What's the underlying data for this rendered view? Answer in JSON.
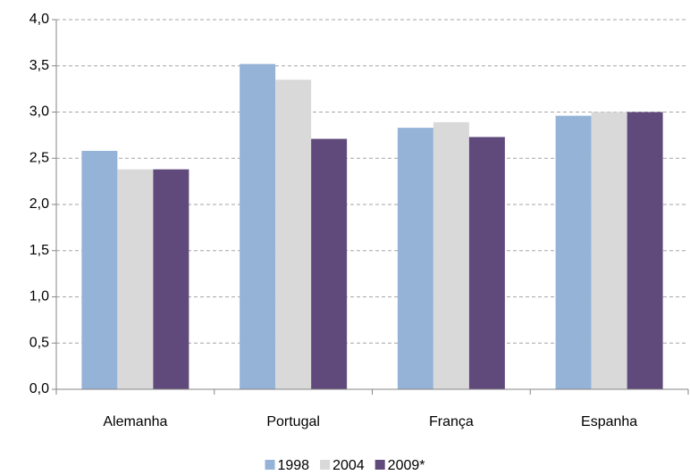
{
  "chart_data": {
    "type": "bar",
    "categories": [
      "Alemanha",
      "Portugal",
      "França",
      "Espanha"
    ],
    "series": [
      {
        "name": "1998",
        "color": "#95b3d7",
        "values": [
          2.58,
          3.52,
          2.83,
          2.96
        ]
      },
      {
        "name": "2004",
        "color": "#d9d9d9",
        "values": [
          2.38,
          3.35,
          2.89,
          3.0
        ]
      },
      {
        "name": "2009*",
        "color": "#604a7b",
        "values": [
          2.38,
          2.71,
          2.73,
          3.0
        ]
      }
    ],
    "ylim": [
      0,
      4
    ],
    "yticks": [
      {
        "value": 0,
        "label": "0,0"
      },
      {
        "value": 0.5,
        "label": "0,5"
      },
      {
        "value": 1,
        "label": "1,0"
      },
      {
        "value": 1.5,
        "label": "1,5"
      },
      {
        "value": 2,
        "label": "2,0"
      },
      {
        "value": 2.5,
        "label": "2,5"
      },
      {
        "value": 3,
        "label": "3,0"
      },
      {
        "value": 3.5,
        "label": "3,5"
      },
      {
        "value": 4,
        "label": "4,0"
      }
    ],
    "grid": true,
    "legend": "bottom"
  }
}
